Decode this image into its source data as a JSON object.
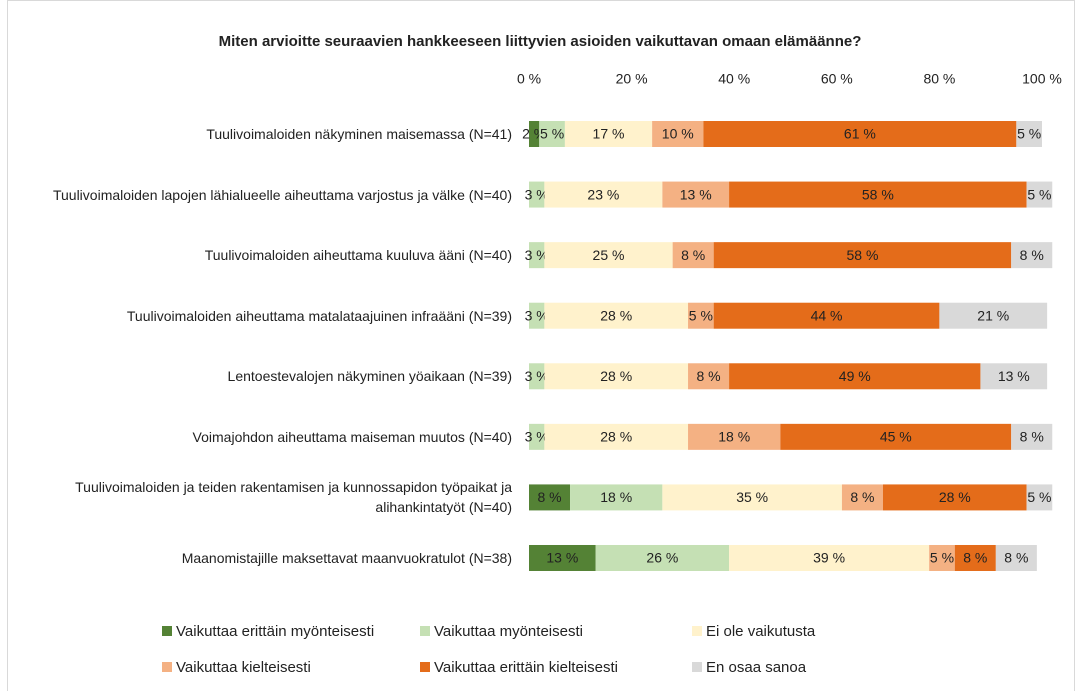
{
  "chart_data": {
    "type": "stacked-bar-horizontal",
    "title": "Miten arvioitte seuraavien hankkeeseen liittyvien asioiden vaikuttavan omaan elämäänne?",
    "categories": [
      "Tuulivoimaloiden näkyminen maisemassa (N=41)",
      "Tuulivoimaloiden lapojen lähialueelle aiheuttama varjostus ja välke (N=40)",
      "Tuulivoimaloiden aiheuttama kuuluva ääni (N=40)",
      "Tuulivoimaloiden aiheuttama matalataajuinen infraääni (N=39)",
      "Lentoestevalojen näkyminen yöaikaan (N=39)",
      "Voimajohdon aiheuttama maiseman muutos (N=40)",
      "Tuulivoimaloiden ja teiden rakentamisen ja kunnossapidon työpaikat ja alihankintatyöt (N=40)",
      "Maanomistajille maksettavat maanvuokratulot (N=38)"
    ],
    "series": [
      {
        "name": "Vaikuttaa erittäin myönteisesti",
        "color": "#548235",
        "values": [
          2,
          null,
          null,
          null,
          null,
          null,
          8,
          13
        ],
        "value_labels": [
          "2 %",
          null,
          null,
          null,
          null,
          null,
          "8 %",
          "13 %"
        ]
      },
      {
        "name": "Vaikuttaa myönteisesti",
        "color": "#c5e0b4",
        "values": [
          5,
          3,
          3,
          3,
          3,
          3,
          18,
          26
        ],
        "value_labels": [
          "5 %",
          "3 %",
          "3 %",
          "3 %",
          "3 %",
          "3 %",
          "18 %",
          "26 %"
        ]
      },
      {
        "name": "Ei ole vaikutusta",
        "color": "#fff2cc",
        "values": [
          17,
          23,
          25,
          28,
          28,
          28,
          35,
          39
        ],
        "value_labels": [
          "17 %",
          "23 %",
          "25 %",
          "28 %",
          "28 %",
          "28 %",
          "35 %",
          "39 %"
        ]
      },
      {
        "name": "Vaikuttaa kielteisesti",
        "color": "#f4b183",
        "values": [
          10,
          13,
          8,
          5,
          8,
          18,
          8,
          5
        ],
        "value_labels": [
          "10 %",
          "13 %",
          "8 %",
          "5 %",
          "8 %",
          "18 %",
          "8 %",
          "5 %"
        ]
      },
      {
        "name": "Vaikuttaa erittäin kielteisesti",
        "color": "#e46c1a",
        "values": [
          61,
          58,
          58,
          44,
          49,
          45,
          28,
          8
        ],
        "value_labels": [
          "61 %",
          "58 %",
          "58 %",
          "44 %",
          "49 %",
          "45 %",
          "28 %",
          "8 %"
        ]
      },
      {
        "name": "En osaa sanoa",
        "color": "#d9d9d9",
        "values": [
          5,
          5,
          8,
          21,
          13,
          8,
          5,
          8
        ],
        "value_labels": [
          "5 %",
          "5 %",
          "8 %",
          "21 %",
          "13 %",
          "8 %",
          "5 %",
          "8 %"
        ]
      }
    ],
    "xlim": [
      0,
      100
    ],
    "xticks": [
      {
        "value": 0,
        "label": "0 %"
      },
      {
        "value": 20,
        "label": "20 %"
      },
      {
        "value": 40,
        "label": "40 %"
      },
      {
        "value": 60,
        "label": "60 %"
      },
      {
        "value": 80,
        "label": "80 %"
      },
      {
        "value": 100,
        "label": "100 %"
      }
    ],
    "grid": false
  }
}
